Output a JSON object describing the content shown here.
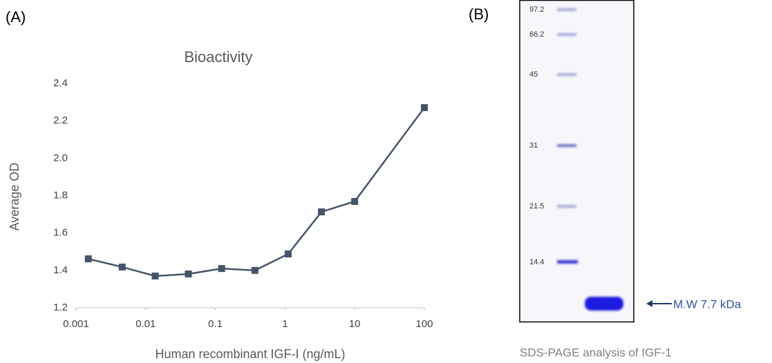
{
  "panels": [
    "(A)",
    "(B)"
  ],
  "chart_data": {
    "type": "line",
    "title": "Bioactivity",
    "x_label": "Human recombinant IGF-I (ng/mL)",
    "y_label": "Average OD",
    "xscale": "log",
    "x": [
      0.0015,
      0.0046,
      0.0137,
      0.041,
      0.123,
      0.37,
      1.11,
      3.33,
      10,
      100
    ],
    "values": [
      1.462,
      1.418,
      1.37,
      1.381,
      1.41,
      1.4,
      1.488,
      1.713,
      1.769,
      2.271
    ],
    "color": "#44546a",
    "xlim": [
      0.001,
      100
    ],
    "xticks": [
      0.001,
      0.01,
      0.1,
      1,
      10,
      100
    ],
    "ylim": [
      1.2,
      2.4
    ],
    "yticks": [
      1.2,
      1.4,
      1.6,
      1.8,
      {
        "value": 2,
        "label": "2.0"
      },
      2.2,
      2.4
    ],
    "grid": false
  },
  "gel": {
    "markers": [
      "97.2",
      "66.2",
      "45",
      "31",
      "21.5",
      "14.4"
    ],
    "band_label": "M.W 7.7 kDa",
    "caption": "SDS-PAGE analysis of IGF-1"
  }
}
